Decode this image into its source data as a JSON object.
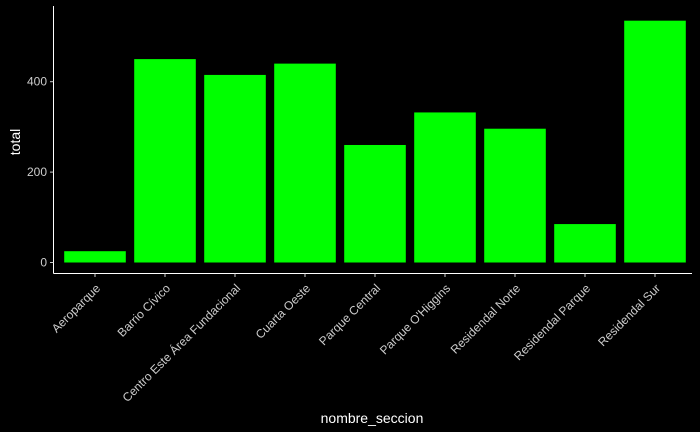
{
  "chart_data": {
    "type": "bar",
    "categories": [
      "Aeroparque",
      "Barrio Cívico",
      "Centro Este Área Fundacional",
      "Cuarta Oeste",
      "Parque Central",
      "Parque O'Higgins",
      "Residendal Norte",
      "Residendal Parque",
      "Residendal Sur"
    ],
    "values": [
      25,
      450,
      415,
      440,
      260,
      332,
      296,
      85,
      535
    ],
    "title": "",
    "xlabel": "nombre_seccion",
    "ylabel": "total",
    "ylim": [
      0,
      560
    ],
    "yticks": [
      0,
      200,
      400
    ],
    "bar_color": "#00ff00",
    "background": "#000000",
    "grid": false
  }
}
